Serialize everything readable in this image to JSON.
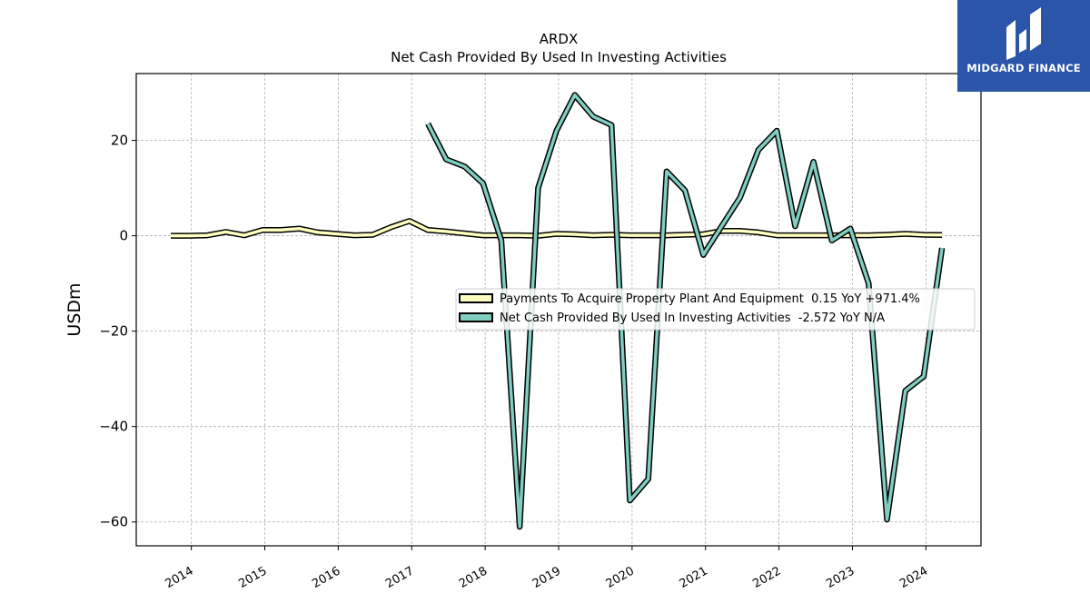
{
  "chart_data": {
    "type": "line",
    "title": "ARDX",
    "subtitle": "Net Cash Provided By Used In Investing Activities",
    "ylabel": "USDm",
    "xlabel": "",
    "xlim": [
      2013.25,
      2024.75
    ],
    "ylim": [
      -65,
      34
    ],
    "yticks": [
      -60,
      -40,
      -20,
      0,
      20
    ],
    "xticks": [
      "2014",
      "2015",
      "2016",
      "2017",
      "2018",
      "2019",
      "2020",
      "2021",
      "2022",
      "2023",
      "2024"
    ],
    "grid": true,
    "legend_position": "center-right",
    "series": [
      {
        "name": "Payments To Acquire Property Plant And Equipment  0.15 YoY +971.4%",
        "color": "#ffffbf",
        "x": [
          2013.72,
          2013.97,
          2014.22,
          2014.47,
          2014.72,
          2014.97,
          2015.22,
          2015.47,
          2015.72,
          2015.97,
          2016.22,
          2016.47,
          2016.72,
          2016.97,
          2017.22,
          2017.47,
          2017.72,
          2017.97,
          2018.22,
          2018.47,
          2018.72,
          2018.97,
          2019.22,
          2019.47,
          2019.72,
          2019.97,
          2020.22,
          2020.47,
          2020.72,
          2020.97,
          2021.22,
          2021.47,
          2021.72,
          2021.97,
          2022.22,
          2022.47,
          2022.72,
          2022.97,
          2023.22,
          2023.47,
          2023.72,
          2023.97,
          2024.22
        ],
        "values": [
          0.0,
          0.0,
          0.1,
          0.8,
          0.1,
          1.2,
          1.2,
          1.5,
          0.7,
          0.4,
          0.1,
          0.2,
          1.8,
          3.1,
          1.2,
          0.9,
          0.5,
          0.1,
          0.1,
          0.1,
          0.0,
          0.4,
          0.3,
          0.1,
          0.2,
          0.1,
          0.1,
          0.1,
          0.2,
          0.3,
          1.0,
          1.0,
          0.7,
          0.1,
          0.1,
          0.1,
          0.1,
          0.1,
          0.1,
          0.2,
          0.4,
          0.2,
          0.15
        ]
      },
      {
        "name": "Net Cash Provided By Used In Investing Activities  -2.572 YoY N/A",
        "color": "#80cdc1",
        "x": [
          2017.22,
          2017.47,
          2017.72,
          2017.97,
          2018.22,
          2018.47,
          2018.72,
          2018.97,
          2019.22,
          2019.47,
          2019.72,
          2019.97,
          2020.22,
          2020.47,
          2020.72,
          2020.97,
          2021.22,
          2021.47,
          2021.72,
          2021.97,
          2022.22,
          2022.47,
          2022.72,
          2022.97,
          2023.22,
          2023.47,
          2023.72,
          2023.97,
          2024.22
        ],
        "values": [
          23.5,
          16.0,
          14.5,
          11.0,
          -1.0,
          -61.0,
          10.0,
          22.0,
          29.5,
          25.0,
          23.2,
          -55.5,
          -51.0,
          13.5,
          9.5,
          -4.0,
          2.0,
          8.0,
          18.0,
          22.0,
          2.0,
          15.5,
          -1.0,
          1.5,
          -10.0,
          -59.5,
          -32.5,
          -29.5,
          -2.572
        ]
      }
    ]
  },
  "logo": {
    "text": "MIDGARD FINANCE"
  }
}
